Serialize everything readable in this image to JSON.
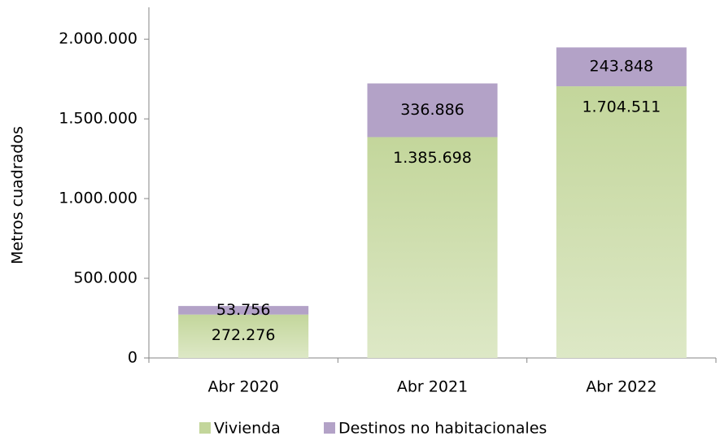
{
  "chart_data": {
    "type": "stacked_bar",
    "y_label": "Metros cuadrados",
    "categories": [
      "Abr 2020",
      "Abr 2021",
      "Abr 2022"
    ],
    "series": [
      {
        "name": "Vivienda",
        "color": "#c3d69b",
        "values": [
          272276,
          1385698,
          1704511
        ],
        "value_labels": [
          "272.276",
          "1.385.698",
          "1.704.511"
        ]
      },
      {
        "name": "Destinos no habitacionales",
        "color": "#b3a2c7",
        "values": [
          53756,
          336886,
          243848
        ],
        "value_labels": [
          "53.756",
          "336.886",
          "243.848"
        ]
      }
    ],
    "ylim": [
      0,
      2200000
    ],
    "yticks": [
      0,
      {
        "value": 500000,
        "label": "500.000"
      },
      {
        "value": 1000000,
        "label": "1.000.000"
      },
      {
        "value": 1500000,
        "label": "1.500.000"
      },
      {
        "value": 2000000,
        "label": "2.000.000"
      }
    ],
    "grid": false
  }
}
